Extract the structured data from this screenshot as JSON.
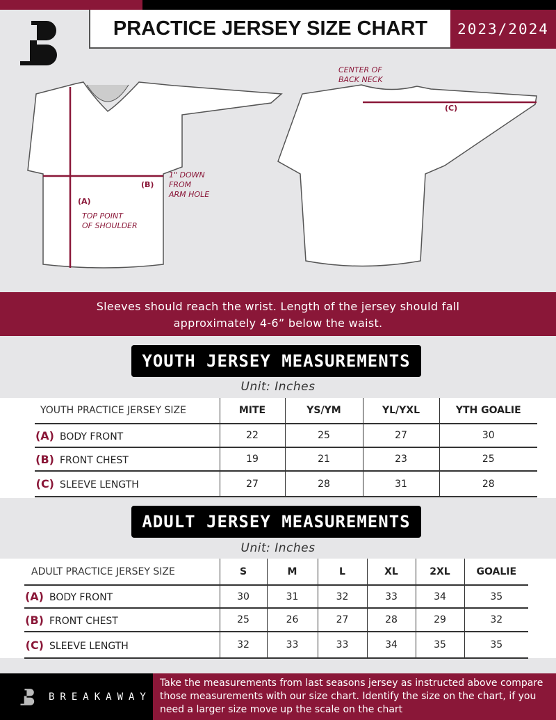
{
  "header": {
    "title": "PRACTICE JERSEY SIZE CHART",
    "season": "2023/2024",
    "logo_letter": "B"
  },
  "diagram": {
    "labels": {
      "a": "(A)",
      "b": "(B)",
      "c": "(C)",
      "top_point": "TOP POINT",
      "of_shoulder": "OF SHOULDER",
      "down1": "1\" DOWN",
      "down2": "FROM",
      "down3": "ARM HOLE",
      "center1": "CENTER OF",
      "center2": "BACK NECK"
    }
  },
  "banner": {
    "line1": "Sleeves should reach the wrist. Length of the jersey should fall",
    "line2": "approximately 4-6” below the waist."
  },
  "youth": {
    "title": "YOUTH JERSEY MEASUREMENTS",
    "unit": "Unit: Inches",
    "header": [
      "YOUTH PRACTICE JERSEY SIZE",
      "MITE",
      "YS/YM",
      "YL/YXL",
      "YTH GOALIE"
    ],
    "rows": [
      {
        "letter": "(A)",
        "label": "BODY FRONT",
        "values": [
          "22",
          "25",
          "27",
          "30"
        ]
      },
      {
        "letter": "(B)",
        "label": "FRONT CHEST",
        "values": [
          "19",
          "21",
          "23",
          "25"
        ]
      },
      {
        "letter": "(C)",
        "label": "SLEEVE LENGTH",
        "values": [
          "27",
          "28",
          "31",
          "28"
        ]
      }
    ]
  },
  "adult": {
    "title": "ADULT JERSEY MEASUREMENTS",
    "unit": "Unit: Inches",
    "header": [
      "ADULT PRACTICE JERSEY SIZE",
      "S",
      "M",
      "L",
      "XL",
      "2XL",
      "GOALIE"
    ],
    "rows": [
      {
        "letter": "(A)",
        "label": "BODY FRONT",
        "values": [
          "30",
          "31",
          "32",
          "33",
          "34",
          "35"
        ]
      },
      {
        "letter": "(B)",
        "label": "FRONT CHEST",
        "values": [
          "25",
          "26",
          "27",
          "28",
          "29",
          "32"
        ]
      },
      {
        "letter": "(C)",
        "label": "SLEEVE LENGTH",
        "values": [
          "32",
          "33",
          "33",
          "34",
          "35",
          "35"
        ]
      }
    ]
  },
  "footer": {
    "brand": "BREAKAWAY",
    "text": "Take the measurements from last seasons jersey as instructed above compare those measurements  with our size chart. Identify the size on the chart, if you need a larger size move up the scale on the chart"
  },
  "colors": {
    "accent": "#8a1738",
    "background": "#e6e6e8"
  }
}
